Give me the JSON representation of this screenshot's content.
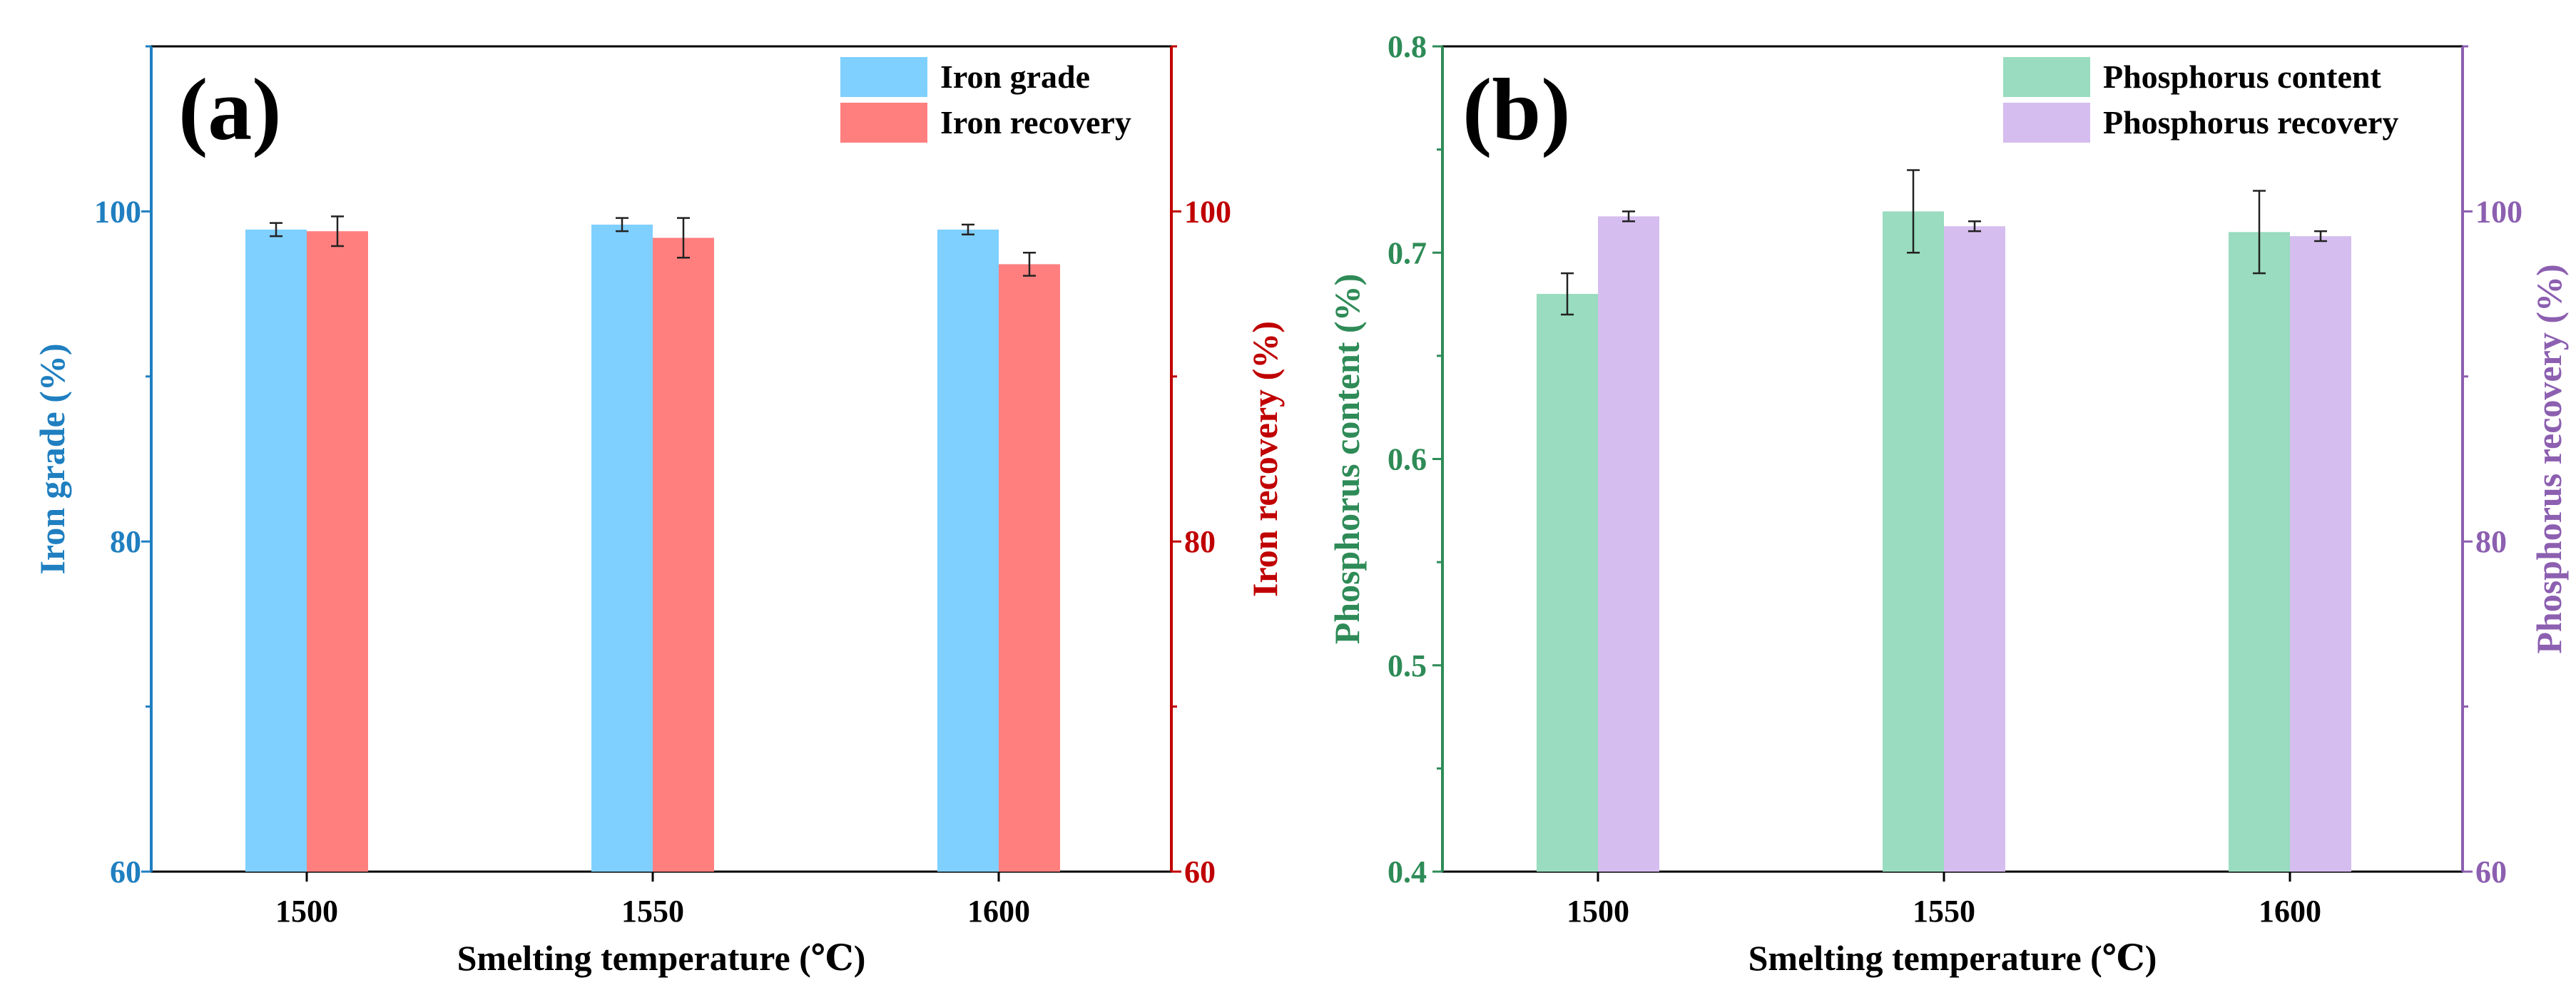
{
  "chart_data": [
    {
      "panel_label": "(a)",
      "type": "bar",
      "categories": [
        "1500",
        "1550",
        "1600"
      ],
      "xlabel": "Smelting temperature (℃)",
      "ylabel_left": "Iron grade (%)",
      "ylabel_right": "Iron recovery (%)",
      "ylim_left": [
        60,
        110
      ],
      "ylim_right": [
        60,
        110
      ],
      "yticks_left": [
        60,
        80,
        100
      ],
      "yticks_right": [
        60,
        80,
        100
      ],
      "ytick_labels_left": [
        "60",
        "80",
        "100"
      ],
      "ytick_labels_right": [
        "60",
        "80",
        "100"
      ],
      "left_axis_color": "#1f7fc0",
      "right_axis_color": "#c00000",
      "legend_position": "top-right",
      "series": [
        {
          "name": "Iron grade",
          "axis": "left",
          "color": "#7fcfff",
          "values": [
            98.9,
            99.2,
            98.9
          ],
          "errors": [
            0.4,
            0.4,
            0.3
          ]
        },
        {
          "name": "Iron recovery",
          "axis": "right",
          "color": "#ff7f7f",
          "values": [
            98.8,
            98.4,
            96.8
          ],
          "errors": [
            0.9,
            1.2,
            0.7
          ]
        }
      ]
    },
    {
      "panel_label": "(b)",
      "type": "bar",
      "categories": [
        "1500",
        "1550",
        "1600"
      ],
      "xlabel": "Smelting temperature (℃)",
      "ylabel_left": "Phosphorus content (%)",
      "ylabel_right": "Phosphorus recovery (%)",
      "ylim_left": [
        0.4,
        0.8
      ],
      "ylim_right": [
        60,
        110
      ],
      "yticks_left": [
        0.4,
        0.5,
        0.6,
        0.7,
        0.8
      ],
      "yticks_right": [
        60,
        80,
        100
      ],
      "ytick_labels_left": [
        "0.4",
        "0.5",
        "0.6",
        "0.7",
        "0.8"
      ],
      "ytick_labels_right": [
        "60",
        "80",
        "100"
      ],
      "left_axis_color": "#2e8b57",
      "right_axis_color": "#8c5fb0",
      "legend_position": "top-right",
      "series": [
        {
          "name": "Phosphorus content",
          "axis": "left",
          "color": "#99dcbf",
          "values": [
            0.68,
            0.72,
            0.71
          ],
          "errors": [
            0.01,
            0.02,
            0.02
          ]
        },
        {
          "name": "Phosphorus recovery",
          "axis": "right",
          "color": "#d6bdef",
          "values": [
            99.7,
            99.1,
            98.5
          ],
          "errors": [
            0.3,
            0.3,
            0.3
          ]
        }
      ]
    }
  ]
}
